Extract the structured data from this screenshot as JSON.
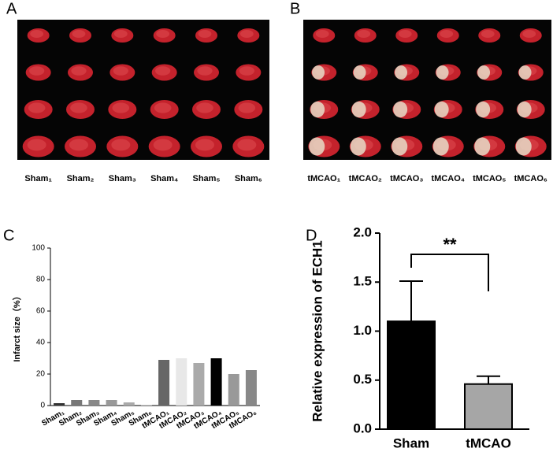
{
  "images": [
    {
      "panel": "A",
      "labels": [
        "Sham₁",
        "Sham₂",
        "Sham₃",
        "Sham₄",
        "Sham₅",
        "Sham₆"
      ]
    },
    {
      "panel": "B",
      "labels": [
        "tMCAO₁",
        "tMCAO₂",
        "tMCAO₃",
        "tMCAO₄",
        "tMCAO₅",
        "tMCAO₆"
      ]
    }
  ],
  "chart_data": [
    {
      "type": "bar",
      "panel": "C",
      "y_label": "Infarct size（%）",
      "categories": [
        "Sham₁",
        "Sham₂",
        "Sham₃",
        "Sham₄",
        "Sham₅",
        "Sham₆",
        "tMCAO₁",
        "tMCAO₂",
        "tMCAO₃",
        "tMCAO₄",
        "tMCAO₅",
        "tMCAO₆"
      ],
      "values": [
        1.5,
        3.5,
        3.5,
        3.5,
        2,
        0.5,
        29,
        30,
        27,
        30,
        20,
        22.5
      ],
      "colors": [
        "#333333",
        "#777777",
        "#888888",
        "#999999",
        "#aaaaaa",
        "#cccccc",
        "#666666",
        "#e8e8e8",
        "#aaaaaa",
        "#000000",
        "#999999",
        "#888888"
      ],
      "ylim": [
        0,
        100
      ],
      "yticks": [
        0,
        20,
        40,
        60,
        80,
        100
      ]
    },
    {
      "type": "errorbar",
      "panel": "D",
      "y_label": "Relative expression of ECH1",
      "categories": [
        "Sham",
        "tMCAO"
      ],
      "values": [
        1.1,
        0.46
      ],
      "errors": [
        0.41,
        0.08
      ],
      "colors": [
        "#000000",
        "#a6a6a6"
      ],
      "annotation": "**",
      "ylim": [
        0,
        2.0
      ],
      "yticks": [
        {
          "value": 0,
          "label": "0.0"
        },
        {
          "value": 0.5,
          "label": "0.5"
        },
        {
          "value": 1,
          "label": "1.0"
        },
        {
          "value": 1.5,
          "label": "1.5"
        },
        {
          "value": 2,
          "label": "2.0"
        }
      ]
    }
  ]
}
